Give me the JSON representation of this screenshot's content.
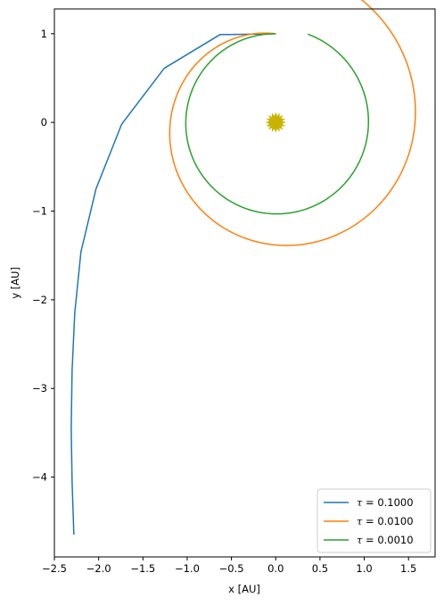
{
  "chart_data": {
    "type": "line",
    "xlabel": "x [AU]",
    "ylabel": "y [AU]",
    "xlim": [
      -2.5,
      1.8
    ],
    "ylim": [
      -4.9,
      1.28
    ],
    "xticks": [
      -2.5,
      -2.0,
      -1.5,
      -1.0,
      -0.5,
      0.0,
      0.5,
      1.0,
      1.5
    ],
    "xtick_labels": [
      "−2.5",
      "−2.0",
      "−1.5",
      "−1.0",
      "−0.5",
      "0.0",
      "0.5",
      "1.0",
      "1.5"
    ],
    "yticks": [
      1,
      0,
      -1,
      -2,
      -3,
      -4
    ],
    "ytick_labels": [
      "1",
      "0",
      "−1",
      "−2",
      "−3",
      "−4"
    ],
    "grid": false,
    "legend_position": "bottom-right",
    "sun": {
      "x": 0.0,
      "y": 0.0,
      "color": "#c8b400"
    },
    "series": [
      {
        "name": "τ = 0.1000",
        "tau_symbol": "τ",
        "tau_value": "= 0.1000",
        "color": "#1f77b4",
        "x": [
          0.0,
          -0.63,
          -1.26,
          -1.74,
          -2.03,
          -2.2,
          -2.27,
          -2.3,
          -2.31,
          -2.3,
          -2.28
        ],
        "y": [
          1.0,
          0.99,
          0.61,
          -0.02,
          -0.75,
          -1.46,
          -2.15,
          -2.8,
          -3.45,
          -4.05,
          -4.65
        ]
      },
      {
        "name": "τ = 0.0100",
        "tau_symbol": "τ",
        "tau_value": "= 0.0100",
        "color": "#ff7f0e",
        "spiral": {
          "theta_start_deg": 90,
          "theta_end_deg": 429,
          "r_start": 1.0,
          "r_end": 1.72,
          "steps": 240
        }
      },
      {
        "name": "τ = 0.0010",
        "tau_symbol": "τ",
        "tau_value": "= 0.0010",
        "color": "#2ca02c",
        "spiral": {
          "theta_start_deg": 90,
          "theta_end_deg": 430,
          "r_start": 1.0,
          "r_end": 1.06,
          "steps": 240
        }
      }
    ]
  }
}
